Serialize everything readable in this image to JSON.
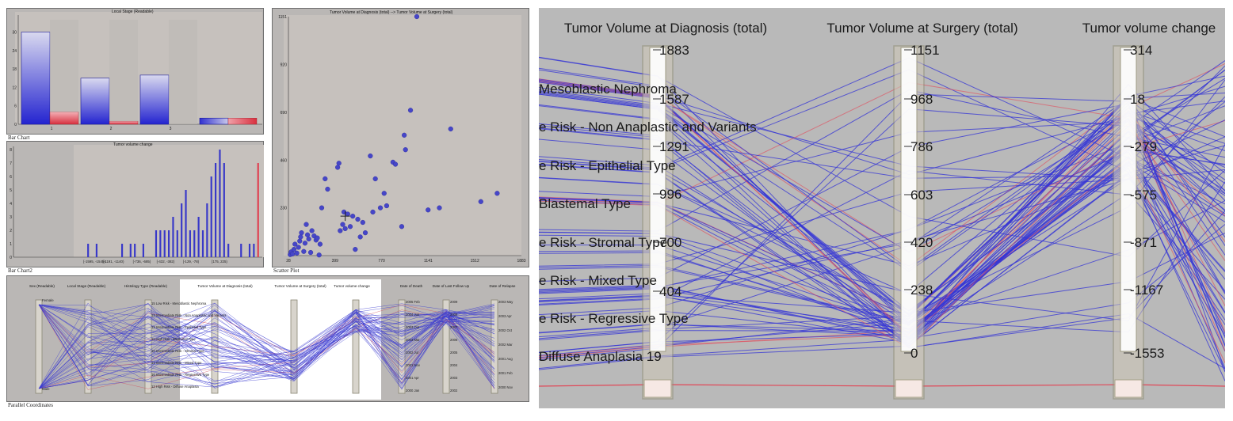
{
  "left": {
    "bar_chart": {
      "title": "Local Stage (Readable)",
      "caption": "Bar Chart",
      "y_ticks": [
        "0",
        "6",
        "12",
        "18",
        "24",
        "30"
      ],
      "categories": [
        "1",
        "2",
        "3",
        ""
      ]
    },
    "bar_chart2": {
      "title": "Tumor volume change",
      "caption": "Bar Chart2",
      "y_ticks": [
        "0",
        "1",
        "2",
        "3",
        "4",
        "5",
        "6",
        "7",
        "8"
      ],
      "x_ticks": [
        "[-1595, -1545)",
        "[-1191, -1140)",
        "[-736, -685)",
        "[-432, -382)",
        "[-129, -78)",
        "[175, 225)"
      ]
    },
    "scatter": {
      "title": "Tumor Volume at Diagnosis (total) --> Tumor Volume at Surgery (total)",
      "caption": "Scatter Plot",
      "y_ticks": [
        "230",
        "460",
        "690",
        "920",
        "1151"
      ],
      "x_ticks": [
        "28",
        "399",
        "770",
        "1141",
        "1512",
        "1883"
      ]
    },
    "parallel": {
      "caption": "Parallel Coordinates",
      "axes": [
        "Sex (Readable)",
        "Local Stage (Readable)",
        "Histology Type (Readable)",
        "Tumor Volume at Diagnosis (total)",
        "Tumor Volume at Surgery (total)",
        "Tumor volume change",
        "Date of Death",
        "Date of Last Follow Up",
        "Date of Relapse"
      ],
      "sex_labels": [
        "Female",
        "Male"
      ],
      "histology_labels": [
        "15 Low Risk - Mesoblastic Nephroma",
        "13 Intermediate Risk - Non Anaplastic and Variants",
        "12 Intermediate Risk - Epithelial Type",
        "11 High Risk - Blastemal Type",
        "10 Intermediate Risk - Stromal Type",
        "14 Intermediate Risk - Mixed Type",
        "16 Intermediate Risk - Regressive Type",
        "12 High Risk - Diffuse Anaplasia"
      ],
      "death_ticks": [
        "2005 Feb",
        "2004 Jun",
        "2003 Oct",
        "2003 Mar",
        "2002 Jul",
        "2001 Nov",
        "2001 Apr",
        "2000 Jan"
      ],
      "followup_ticks": [
        "2009",
        "2008",
        "2007",
        "2006",
        "2005",
        "2004",
        "2003",
        "2002"
      ],
      "relapse_ticks": [
        "2003 May",
        "2003 Apr",
        "2002 Oct",
        "2002 Mar",
        "2001 Aug",
        "2001 Feb",
        "2000 Nov"
      ]
    }
  },
  "zoom": {
    "axes": [
      {
        "title": "Tumor Volume at Diagnosis (total)",
        "ticks": [
          "1883",
          "1587",
          "1291",
          "996",
          "700",
          "404"
        ]
      },
      {
        "title": "Tumor Volume at Surgery (total)",
        "ticks": [
          "1151",
          "968",
          "786",
          "603",
          "420",
          "238",
          "0"
        ]
      },
      {
        "title": "Tumor volume change",
        "ticks": [
          "314",
          "18",
          "-279",
          "-575",
          "-871",
          "-1167",
          "-1553"
        ]
      }
    ],
    "category_labels": [
      "Mesoblastic Nephroma",
      "e Risk - Non Anaplastic and Variants",
      "e Risk - Epithelial Type",
      "Blastemal Type",
      "e Risk - Stromal Type",
      "e Risk - Mixed Type",
      "e Risk - Regressive Type",
      "Diffuse Anaplasia 19"
    ]
  },
  "chart_data": [
    {
      "type": "bar",
      "title": "Local Stage (Readable)",
      "categories": [
        "1",
        "2",
        "3",
        "4"
      ],
      "series": [
        {
          "values": [
            30,
            15,
            16,
            2
          ]
        },
        {
          "values": [
            4,
            1,
            0,
            2
          ]
        }
      ],
      "ylim": [
        0,
        34
      ]
    },
    {
      "type": "bar",
      "title": "Tumor volume change",
      "bins_count": 44,
      "values": [
        0,
        0,
        0,
        1,
        0,
        1,
        0,
        0,
        0,
        0,
        0,
        1,
        0,
        1,
        1,
        0,
        1,
        0,
        0,
        2,
        2,
        2,
        2,
        3,
        2,
        4,
        5,
        2,
        2,
        3,
        2,
        4,
        6,
        7,
        8,
        7,
        1,
        0,
        0,
        1,
        0,
        1,
        1,
        7
      ],
      "highlight_last": true,
      "ylim": [
        0,
        8
      ]
    },
    {
      "type": "scatter",
      "title": "Tumor Volume at Diagnosis (total) --> Tumor Volume at Surgery (total)",
      "xlim": [
        28,
        1883
      ],
      "ylim": [
        0,
        1151
      ],
      "points": [
        [
          42,
          5
        ],
        [
          50,
          18
        ],
        [
          60,
          8
        ],
        [
          72,
          30
        ],
        [
          80,
          55
        ],
        [
          95,
          12
        ],
        [
          108,
          40
        ],
        [
          118,
          70
        ],
        [
          125,
          90
        ],
        [
          132,
          110
        ],
        [
          150,
          20
        ],
        [
          160,
          60
        ],
        [
          170,
          150
        ],
        [
          180,
          100
        ],
        [
          190,
          80
        ],
        [
          205,
          15
        ],
        [
          215,
          120
        ],
        [
          232,
          95
        ],
        [
          248,
          75
        ],
        [
          258,
          85
        ],
        [
          272,
          3
        ],
        [
          280,
          55
        ],
        [
          293,
          230
        ],
        [
          320,
          370
        ],
        [
          340,
          320
        ],
        [
          420,
          425
        ],
        [
          430,
          445
        ],
        [
          440,
          120
        ],
        [
          460,
          150
        ],
        [
          470,
          210
        ],
        [
          480,
          130
        ],
        [
          500,
          200
        ],
        [
          520,
          140
        ],
        [
          540,
          190
        ],
        [
          560,
          30
        ],
        [
          580,
          175
        ],
        [
          600,
          90
        ],
        [
          620,
          160
        ],
        [
          640,
          110
        ],
        [
          680,
          480
        ],
        [
          700,
          210
        ],
        [
          720,
          370
        ],
        [
          760,
          230
        ],
        [
          790,
          300
        ],
        [
          810,
          240
        ],
        [
          860,
          450
        ],
        [
          880,
          440
        ],
        [
          930,
          140
        ],
        [
          950,
          580
        ],
        [
          960,
          510
        ],
        [
          1000,
          700
        ],
        [
          1050,
          1151
        ],
        [
          1140,
          220
        ],
        [
          1230,
          230
        ],
        [
          1320,
          610
        ],
        [
          1560,
          260
        ],
        [
          1690,
          300
        ]
      ]
    }
  ]
}
